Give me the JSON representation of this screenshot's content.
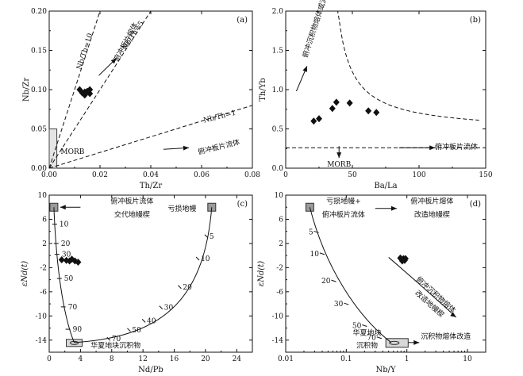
{
  "chart_data": [
    {
      "panel": "(a)",
      "type": "scatter",
      "xlabel": "Th/Zr",
      "ylabel": "Nb/Zr",
      "xlim": [
        0,
        0.08
      ],
      "ylim": [
        0,
        0.2
      ],
      "xticks": [
        "0.00",
        "0.02",
        "0.04",
        "0.06",
        "0.08"
      ],
      "yticks": [
        "0.00",
        "0.05",
        "0.10",
        "0.15",
        "0.20"
      ],
      "points": [
        [
          0.012,
          0.1
        ],
        [
          0.014,
          0.097
        ],
        [
          0.014,
          0.093
        ],
        [
          0.016,
          0.095
        ],
        [
          0.016,
          0.1
        ],
        [
          0.015,
          0.098
        ],
        [
          0.013,
          0.096
        ]
      ],
      "reference_lines": [
        {
          "label": "Nb/Th=10",
          "slope": 10
        },
        {
          "label": "Nb/Th=5",
          "slope": 5
        },
        {
          "label": "Nb/Th=1",
          "slope": 1
        }
      ],
      "fields": [
        {
          "label": "MORB",
          "x": [
            0,
            0.003
          ],
          "y": [
            0,
            0.05
          ]
        }
      ],
      "annotations": [
        "俯冲板片熔体",
        "俯冲板片流体"
      ]
    },
    {
      "panel": "(b)",
      "type": "scatter",
      "xlabel": "Ba/La",
      "ylabel": "Th/Yb",
      "xlim": [
        0,
        150
      ],
      "ylim": [
        0,
        2.0
      ],
      "xticks": [
        "0",
        "50",
        "100",
        "150"
      ],
      "yticks": [
        "0.0",
        "0.5",
        "1.0",
        "1.5",
        "2.0"
      ],
      "points": [
        [
          21,
          0.6
        ],
        [
          25,
          0.63
        ],
        [
          35,
          0.76
        ],
        [
          38,
          0.84
        ],
        [
          48,
          0.83
        ],
        [
          62,
          0.73
        ],
        [
          68,
          0.71
        ]
      ],
      "reference_lines": [
        {
          "label": "MORB",
          "y": 0.26
        }
      ],
      "annotations": [
        "俯冲沉积物熔体或流体",
        "俯冲板片流体",
        "MORB"
      ]
    },
    {
      "panel": "(c)",
      "type": "line",
      "xlabel": "Nd/Pb",
      "ylabel": "εNd(t)",
      "xlim": [
        0,
        26
      ],
      "ylim": [
        -16,
        10
      ],
      "xticks": [
        "0",
        "4",
        "8",
        "12",
        "16",
        "20",
        "24"
      ],
      "yticks": [
        "-14",
        "-10",
        "-6",
        "-2",
        "2",
        "6",
        "10"
      ],
      "points": [
        [
          2.2,
          -0.8
        ],
        [
          2.6,
          -0.9
        ],
        [
          2.9,
          -0.6
        ],
        [
          3.3,
          -0.9
        ],
        [
          3.7,
          -1.1
        ],
        [
          1.6,
          -0.7
        ]
      ],
      "mixing_curves": [
        {
          "from": "俯冲板片流体交代地幔楔",
          "ticks": [
            "10",
            "20",
            "30",
            "50",
            "70",
            "90"
          ]
        },
        {
          "from": "亏损地幔",
          "ticks": [
            "5",
            "10",
            "20",
            "30",
            "40",
            "50",
            "70"
          ]
        }
      ],
      "end_members": [
        "俯冲板片流体交代地幔楔",
        "亏损地幔",
        "华夏地块沉积物"
      ]
    },
    {
      "panel": "(d)",
      "type": "line",
      "xlabel": "Nb/Y",
      "ylabel": "εNd(t)",
      "xscale": "log",
      "xlim": [
        0.01,
        20
      ],
      "ylim": [
        -16,
        10
      ],
      "xticks": [
        "0.01",
        "0.1",
        "1",
        "10"
      ],
      "yticks": [
        "-14",
        "-10",
        "-6",
        "-2",
        "2",
        "6",
        "10"
      ],
      "points": [
        [
          0.78,
          -0.4
        ],
        [
          0.84,
          -0.9
        ],
        [
          0.88,
          -0.5
        ],
        [
          0.92,
          -0.8
        ],
        [
          0.81,
          -0.6
        ],
        [
          0.95,
          -0.5
        ]
      ],
      "mixing_curves": [
        {
          "ticks": [
            "5",
            "10",
            "20",
            "30",
            "50",
            "70"
          ]
        }
      ],
      "end_members": [
        "亏损地幔+俯冲板片流体",
        "华夏地块沉积物"
      ],
      "annotations": [
        "俯冲板片熔体改造地幔楔",
        "俯冲沉积物熔体改造地幔楔",
        "沉积物熔体改造"
      ]
    }
  ]
}
